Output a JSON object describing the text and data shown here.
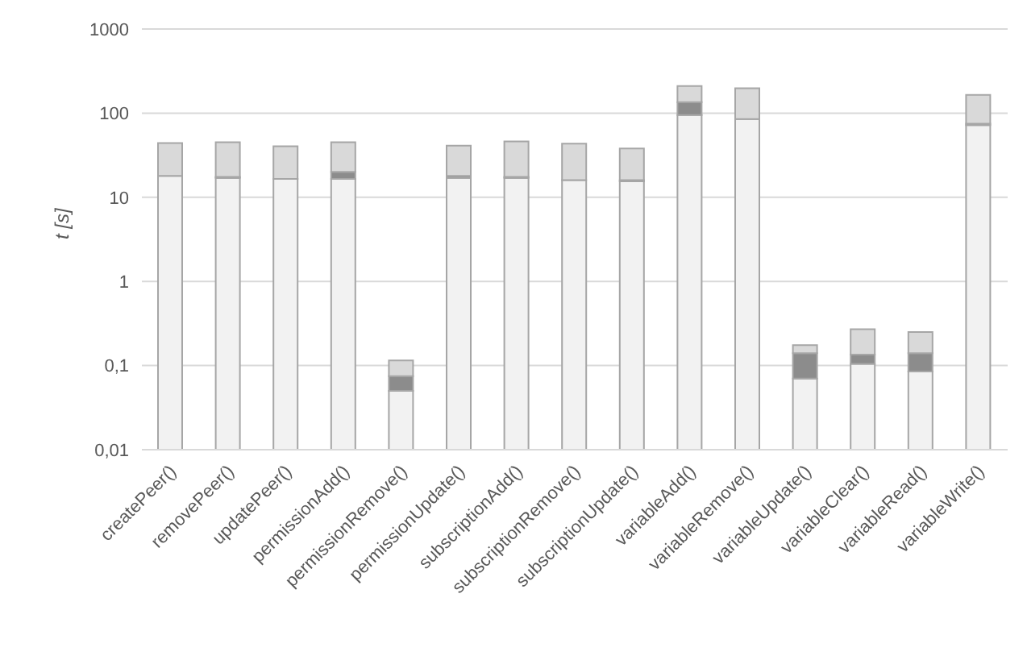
{
  "chart_data": {
    "type": "bar",
    "stacked": true,
    "log": "y",
    "ylabel": "t [s]",
    "categories": [
      "createPeer()",
      "removePeer()",
      "updatePeer()",
      "permissionAdd()",
      "permissionRemove()",
      "permissionUpdate()",
      "subscriptionAdd()",
      "subscriptionRemove()",
      "subscriptionUpdate()",
      "variableAdd()",
      "variableRemove()",
      "variableUpdate()",
      "variableClear()",
      "variableRead()",
      "variableWrite()"
    ],
    "series": [
      {
        "color": "#f2f2f2",
        "values": [
          18,
          17,
          16.5,
          16.5,
          0.05,
          17,
          17,
          16,
          15.5,
          95,
          85,
          0.07,
          0.105,
          0.085,
          72
        ]
      },
      {
        "color": "#8c8c8c",
        "values": [
          null,
          0.5,
          null,
          3.5,
          0.025,
          1,
          0.5,
          null,
          0.5,
          40,
          null,
          0.07,
          0.03,
          0.055,
          3
        ]
      },
      {
        "color": "#d9d9d9",
        "values": [
          26,
          27.5,
          24,
          25,
          0.04,
          23,
          28.5,
          27.5,
          22,
          75,
          113,
          0.035,
          0.135,
          0.11,
          90
        ]
      }
    ],
    "ylim": [
      0.01,
      1000
    ],
    "yticks": [
      {
        "value": 0.01,
        "label": "0,01"
      },
      {
        "value": 0.1,
        "label": "0,1"
      },
      1,
      10,
      100,
      1000
    ],
    "grid": "y",
    "legend": false
  }
}
